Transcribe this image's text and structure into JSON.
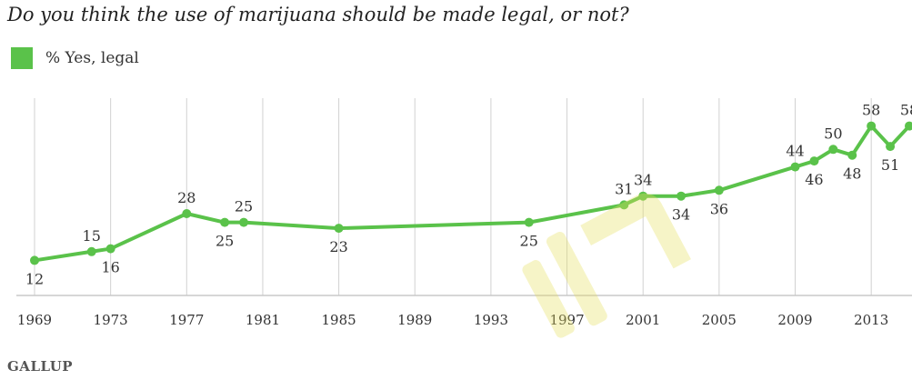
{
  "title": "Do you think the use of marijuana should be made legal, or not?",
  "legend": {
    "label": "% Yes, legal",
    "color": "#5ac24a"
  },
  "brand": "GALLUP",
  "chart_data": {
    "type": "line",
    "title": "Do you think the use of marijuana should be made legal, or not?",
    "xlabel": "",
    "ylabel": "",
    "xlim": [
      1969,
      2015
    ],
    "ylim": [
      0,
      70
    ],
    "grid": "vertical",
    "legend_position": "top-left",
    "x_ticks": [
      1969,
      1973,
      1977,
      1981,
      1985,
      1989,
      1993,
      1997,
      2001,
      2005,
      2009,
      2013
    ],
    "series": [
      {
        "name": "% Yes, legal",
        "color": "#5ac24a",
        "x": [
          1969,
          1972,
          1973,
          1977,
          1979,
          1980,
          1985,
          1995,
          2000,
          2001,
          2003,
          2005,
          2009,
          2010,
          2011,
          2012,
          2013,
          2014,
          2015
        ],
        "values": [
          12,
          15,
          16,
          28,
          25,
          25,
          23,
          25,
          31,
          34,
          34,
          36,
          44,
          46,
          50,
          48,
          58,
          51,
          58
        ],
        "labels": [
          "12",
          "15",
          "16",
          "28",
          "25",
          "25",
          "23",
          "25",
          "31",
          "34",
          "34",
          "36",
          "44",
          "46",
          "50",
          "48",
          "58",
          "51",
          "58"
        ],
        "label_pos": [
          "below",
          "above",
          "below",
          "above",
          "below",
          "above",
          "below",
          "below",
          "above",
          "above",
          "below",
          "below",
          "above",
          "below",
          "above",
          "below",
          "above",
          "below",
          "above"
        ]
      }
    ]
  }
}
